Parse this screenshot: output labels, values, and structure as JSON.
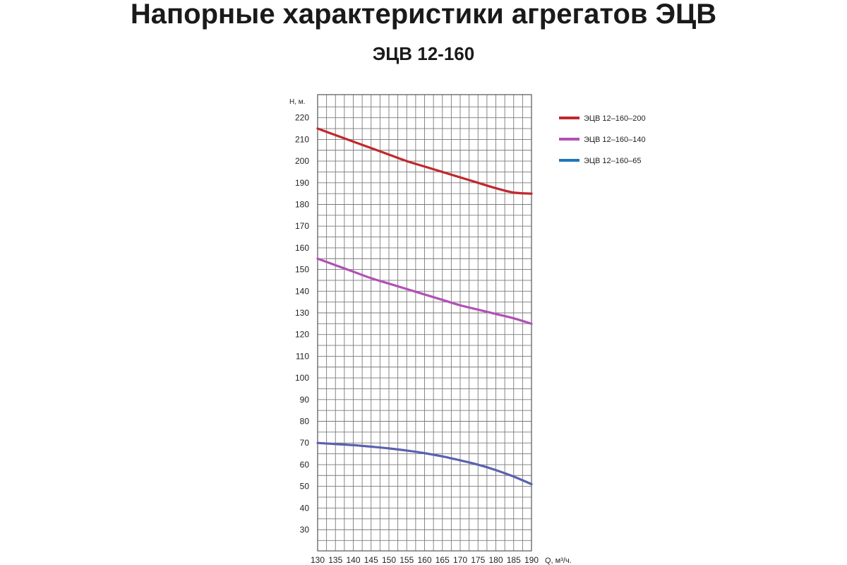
{
  "page": {
    "title": "Напорные характеристики агрегатов ЭЦВ",
    "subtitle": "ЭЦВ 12-160"
  },
  "chart_data": {
    "type": "line",
    "title": "ЭЦВ 12-160",
    "xlabel": "Q, м³/ч.",
    "ylabel": "H, м.",
    "xlim": [
      130,
      190
    ],
    "ylim": [
      20,
      225
    ],
    "x_ticks": [
      130,
      135,
      140,
      145,
      150,
      155,
      160,
      165,
      170,
      175,
      180,
      185,
      190
    ],
    "y_ticks": [
      30,
      40,
      50,
      60,
      70,
      80,
      90,
      100,
      110,
      120,
      130,
      140,
      150,
      160,
      170,
      180,
      190,
      200,
      210,
      220
    ],
    "grid": true,
    "legend_position": "right",
    "series": [
      {
        "name": "ЭЦВ 12–160–200",
        "color": "#c1272d",
        "x": [
          130,
          135,
          140,
          145,
          150,
          155,
          160,
          165,
          170,
          175,
          180,
          185,
          190
        ],
        "values": [
          215,
          212,
          209,
          206,
          203,
          200,
          197.5,
          195,
          192.5,
          190,
          187.5,
          185.5,
          185
        ]
      },
      {
        "name": "ЭЦВ 12–160–140",
        "color": "#b250b4",
        "x": [
          130,
          135,
          140,
          145,
          150,
          155,
          160,
          165,
          170,
          175,
          180,
          185,
          190
        ],
        "values": [
          155,
          152,
          149,
          146,
          143.5,
          141,
          138.5,
          136,
          133.5,
          131.5,
          129.5,
          127.5,
          125
        ]
      },
      {
        "name": "ЭЦВ 12–160–65",
        "color": "#5a60b0",
        "legend_color": "#1f77b4",
        "x": [
          130,
          135,
          140,
          145,
          150,
          155,
          160,
          165,
          170,
          175,
          180,
          185,
          190
        ],
        "values": [
          70,
          69.5,
          69,
          68.3,
          67.5,
          66.5,
          65.3,
          63.8,
          62,
          60,
          57.5,
          54.5,
          51
        ]
      }
    ]
  }
}
